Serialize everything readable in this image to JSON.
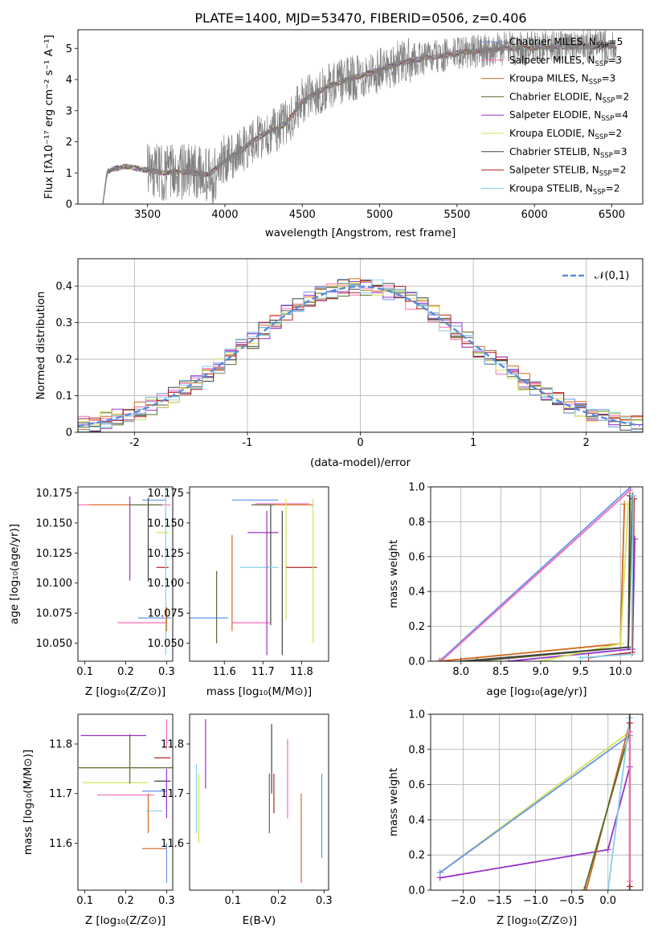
{
  "figure_title": "PLATE=1400, MJD=53470, FIBERID=0506, z=0.406",
  "chart_data": [
    {
      "id": "spectrum",
      "type": "line",
      "xlabel": "wavelength [Angstrom, rest frame]",
      "ylabel": "Flux [f$_\\lambda$10$^{-17}$ erg cm$^{-2}$ s$^{-1}$ A$^{-1}$]",
      "ylabel_text": "Flux [fλ10⁻¹⁷ erg cm⁻² s⁻¹ A⁻¹]",
      "xlim": [
        3050,
        6700
      ],
      "ylim": [
        0,
        5.6
      ],
      "xticks": [
        3500,
        4000,
        4500,
        5000,
        5500,
        6000,
        6500
      ],
      "yticks": [
        0,
        1,
        2,
        3,
        4,
        5
      ],
      "grid": false,
      "legend_position": "top-right",
      "observed_color": "#808080",
      "continuum": [
        [
          3210,
          0
        ],
        [
          3240,
          1.05
        ],
        [
          3300,
          1.15
        ],
        [
          3350,
          1.22
        ],
        [
          3400,
          1.18
        ],
        [
          3450,
          1.12
        ],
        [
          3500,
          1.1
        ],
        [
          3600,
          1.0
        ],
        [
          3700,
          1.05
        ],
        [
          3800,
          1.0
        ],
        [
          3900,
          0.95
        ],
        [
          4000,
          1.4
        ],
        [
          4050,
          1.55
        ],
        [
          4100,
          1.7
        ],
        [
          4200,
          2.1
        ],
        [
          4300,
          2.35
        ],
        [
          4400,
          2.6
        ],
        [
          4500,
          3.3
        ],
        [
          4600,
          3.6
        ],
        [
          4700,
          3.85
        ],
        [
          4800,
          4.0
        ],
        [
          4900,
          4.15
        ],
        [
          5000,
          4.3
        ],
        [
          5100,
          4.5
        ],
        [
          5200,
          4.6
        ],
        [
          5300,
          4.7
        ],
        [
          5400,
          4.75
        ],
        [
          5500,
          4.85
        ],
        [
          5600,
          4.9
        ],
        [
          5700,
          4.95
        ],
        [
          5800,
          5.0
        ],
        [
          5900,
          5.0
        ],
        [
          6000,
          5.02
        ],
        [
          6100,
          5.05
        ],
        [
          6200,
          5.05
        ],
        [
          6300,
          5.08
        ],
        [
          6400,
          5.05
        ],
        [
          6500,
          5.1
        ],
        [
          6530,
          5.0
        ]
      ],
      "noise_start": 3500,
      "noise_end": 6530,
      "series": [
        {
          "name": "Chabrier MILES, N$_{SSP}$=5",
          "label": "Chabrier MILES, N",
          "sub": "SSP",
          "count": "=5",
          "color": "#6495ED"
        },
        {
          "name": "Salpeter MILES, N$_{SSP}$=3",
          "label": "Salpeter MILES, N",
          "sub": "SSP",
          "count": "=3",
          "color": "#FF69B4"
        },
        {
          "name": "Kroupa MILES, N$_{SSP}$=3",
          "label": "Kroupa MILES, N",
          "sub": "SSP",
          "count": "=3",
          "color": "#D2691E"
        },
        {
          "name": "Chabrier ELODIE, N$_{SSP}$=2",
          "label": "Chabrier ELODIE, N",
          "sub": "SSP",
          "count": "=2",
          "color": "#556B2F"
        },
        {
          "name": "Salpeter ELODIE, N$_{SSP}$=4",
          "label": "Salpeter ELODIE, N",
          "sub": "SSP",
          "count": "=4",
          "color": "#9932CC"
        },
        {
          "name": "Kroupa ELODIE, N$_{SSP}$=2",
          "label": "Kroupa ELODIE, N",
          "sub": "SSP",
          "count": "=2",
          "color": "#D4E157"
        },
        {
          "name": "Chabrier STELIB, N$_{SSP}$=3",
          "label": "Chabrier STELIB, N",
          "sub": "SSP",
          "count": "=3",
          "color": "#404040"
        },
        {
          "name": "Salpeter STELIB, N$_{SSP}$=2",
          "label": "Salpeter STELIB, N",
          "sub": "SSP",
          "count": "=2",
          "color": "#B22222"
        },
        {
          "name": "Kroupa STELIB, N$_{SSP}$=2",
          "label": "Kroupa STELIB, N",
          "sub": "SSP",
          "count": "=2",
          "color": "#87CEEB"
        }
      ]
    },
    {
      "id": "residuals",
      "type": "line",
      "xlabel": "(data-model)/error",
      "ylabel": "Normed distribution",
      "xlim": [
        -2.5,
        2.5
      ],
      "ylim": [
        0,
        0.475
      ],
      "xticks": [
        -2,
        -1,
        0,
        1,
        2
      ],
      "yticks": [
        0.0,
        0.1,
        0.2,
        0.3,
        0.4
      ],
      "grid": true,
      "legend_position": "top-right",
      "gaussian_label": "𝒩(0,1)",
      "gaussian_color": "#5B8DD9",
      "bin_width": 0.1
    },
    {
      "id": "age_vs_Z",
      "type": "scatter",
      "xlabel": "Z [log$_{10}$(Z/Z$_\\odot$)]",
      "xlabel_text": "Z [log₁₀(Z/Z⊙)]",
      "ylabel": "age  [log$_{10}$($age/yr$)]",
      "ylabel_text": "age  [log₁₀(age/yr)]",
      "xlim": [
        0.083,
        0.315
      ],
      "ylim": [
        10.035,
        10.18
      ],
      "xticks": [
        0.1,
        0.2,
        0.3
      ],
      "xticklabels": [
        "0.1",
        "0.2",
        "0.3"
      ],
      "yticks": [
        10.05,
        10.075,
        10.1,
        10.125,
        10.15,
        10.175
      ],
      "yticklabels": [
        "10.050",
        "10.075",
        "10.100",
        "10.125",
        "10.150",
        "10.175"
      ],
      "grid": false,
      "errorbars": [
        {
          "x": 0.27,
          "xerr": 0.03,
          "y": 10.169,
          "yerr": 0.0
        },
        {
          "x": 0.19,
          "xerr": 0.12,
          "y": 10.165,
          "yerr": 0.0
        },
        {
          "x": 0.16,
          "xerr": 0.05,
          "y": 10.165,
          "yerr": 0.0
        },
        {
          "x": 0.25,
          "xerr": 0.04,
          "y": 10.165,
          "yerr": 0.0
        },
        {
          "x": 0.21,
          "xerr": 0.0,
          "y": 10.137,
          "yerr": 0.035
        },
        {
          "x": 0.29,
          "xerr": 0.015,
          "y": 10.142,
          "yerr": 0.0
        },
        {
          "x": 0.255,
          "xerr": 0.0,
          "y": 10.136,
          "yerr": 0.035
        },
        {
          "x": 0.29,
          "xerr": 0.015,
          "y": 10.113,
          "yerr": 0.0
        },
        {
          "x": 0.298,
          "xerr": 0.0,
          "y": 10.11,
          "yerr": 0.07
        },
        {
          "x": 0.27,
          "xerr": 0.04,
          "y": 10.071,
          "yerr": 0.0
        },
        {
          "x": 0.24,
          "xerr": 0.06,
          "y": 10.067,
          "yerr": 0.0
        },
        {
          "x": 0.3,
          "xerr": 0.0,
          "y": 10.07,
          "yerr": 0.01
        }
      ]
    },
    {
      "id": "age_vs_mass",
      "type": "scatter",
      "xlabel": "mass [log$_{10}$($M/M_\\odot$)]",
      "xlabel_text": "mass [log₁₀(M/M⊙)]",
      "xlim": [
        11.51,
        11.87
      ],
      "ylim": [
        10.035,
        10.18
      ],
      "xticks": [
        11.6,
        11.7,
        11.8
      ],
      "xticklabels": [
        "11.6",
        "11.7",
        "11.8"
      ],
      "yticks": [
        10.05,
        10.075,
        10.1,
        10.125,
        10.15,
        10.175
      ],
      "yticklabels": [
        "10.050",
        "10.075",
        "10.100",
        "10.125",
        "10.150",
        "10.175"
      ],
      "grid": false
    },
    {
      "id": "weight_vs_age",
      "type": "line",
      "xlabel": "age  [log$_{10}$($age/yr$)]",
      "xlabel_text": "age  [log₁₀(age/yr)]",
      "ylabel": "mass weight",
      "xlim": [
        7.62,
        10.28
      ],
      "ylim": [
        0,
        1
      ],
      "xticks": [
        8.0,
        8.5,
        9.0,
        9.5,
        10.0
      ],
      "xticklabels": [
        "8.0",
        "8.5",
        "9.0",
        "9.5",
        "10.0"
      ],
      "yticks": [
        0.0,
        0.2,
        0.4,
        0.6,
        0.8,
        1.0
      ],
      "yticklabels": [
        "0.0",
        "0.2",
        "0.4",
        "0.6",
        "0.8",
        "1.0"
      ],
      "grid": true
    },
    {
      "id": "mass_vs_Z",
      "type": "scatter",
      "xlabel": "Z [log$_{10}$(Z/Z$_\\odot$)]",
      "xlabel_text": "Z [log₁₀(Z/Z⊙)]",
      "ylabel": "mass [log$_{10}$($M/M_\\odot$)]",
      "ylabel_text": "mass [log₁₀(M/M⊙)]",
      "xlim": [
        0.083,
        0.315
      ],
      "ylim": [
        11.505,
        11.86
      ],
      "xticks": [
        0.1,
        0.2,
        0.3
      ],
      "xticklabels": [
        "0.1",
        "0.2",
        "0.3"
      ],
      "yticks": [
        11.6,
        11.7,
        11.8
      ],
      "yticklabels": [
        "11.6",
        "11.7",
        "11.8"
      ],
      "grid": false
    },
    {
      "id": "mass_vs_EBV",
      "type": "scatter",
      "xlabel": "E(B-V)",
      "xlim": [
        0.005,
        0.31
      ],
      "ylim": [
        11.505,
        11.86
      ],
      "xticks": [
        0.1,
        0.2,
        0.3
      ],
      "xticklabels": [
        "0.1",
        "0.2",
        "0.3"
      ],
      "yticks": [
        11.6,
        11.7,
        11.8
      ],
      "yticklabels": [
        "11.6",
        "11.7",
        "11.8"
      ],
      "grid": false
    },
    {
      "id": "weight_vs_Z",
      "type": "line",
      "xlabel": "Z [log$_{10}$(Z/Z$_\\odot$)]",
      "xlabel_text": "Z [log₁₀(Z/Z⊙)]",
      "ylabel": "mass weight",
      "xlim": [
        -2.45,
        0.48
      ],
      "ylim": [
        0,
        1
      ],
      "xticks": [
        -2.0,
        -1.5,
        -1.0,
        -0.5,
        0.0
      ],
      "xticklabels": [
        "−2.0",
        "−1.5",
        "−1.0",
        "−0.5",
        "0.0"
      ],
      "yticks": [
        0.0,
        0.2,
        0.4,
        0.6,
        0.8,
        1.0
      ],
      "yticklabels": [
        "0.0",
        "0.2",
        "0.4",
        "0.6",
        "0.8",
        "1.0"
      ],
      "grid": true
    }
  ]
}
